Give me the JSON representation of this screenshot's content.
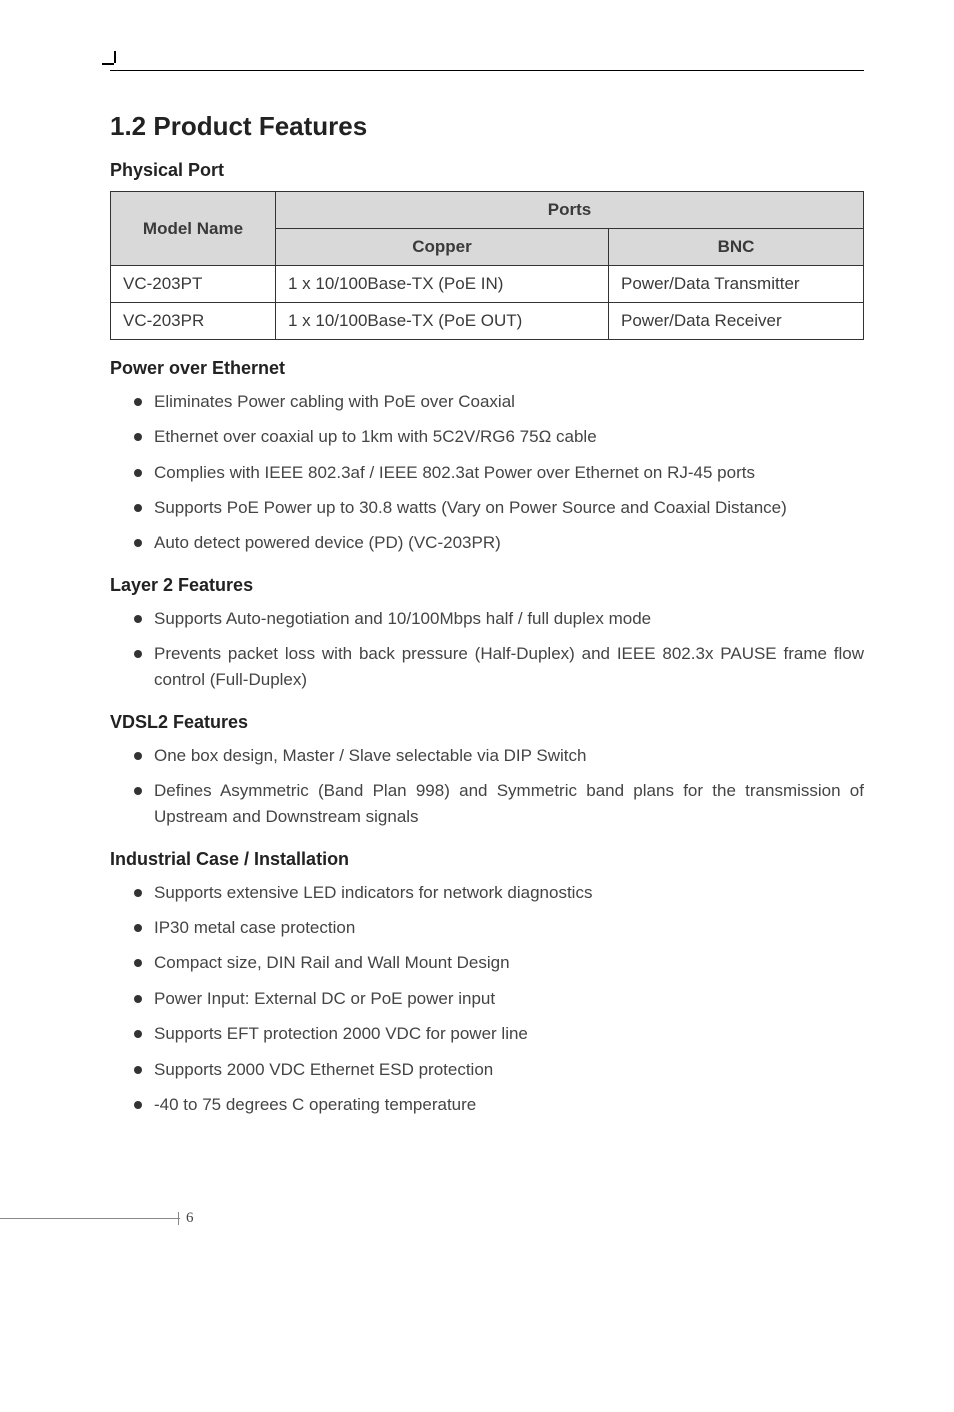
{
  "header": {
    "section_number_title": "1.2  Product Features"
  },
  "physical_port": {
    "heading": "Physical Port",
    "table": {
      "header_model": "Model Name",
      "header_ports": "Ports",
      "header_copper": "Copper",
      "header_bnc": "BNC",
      "rows": [
        {
          "model": "VC-203PT",
          "copper": "1 x 10/100Base-TX (PoE IN)",
          "bnc": "Power/Data Transmitter"
        },
        {
          "model": "VC-203PR",
          "copper": "1 x 10/100Base-TX (PoE OUT)",
          "bnc": "Power/Data Receiver"
        }
      ]
    }
  },
  "power_over_ethernet": {
    "heading": "Power over Ethernet",
    "items": [
      "Eliminates Power cabling with PoE over Coaxial",
      "Ethernet over coaxial up to 1km with 5C2V/RG6 75Ω cable",
      "Complies with IEEE 802.3af / IEEE 802.3at Power over Ethernet on RJ-45 ports",
      "Supports PoE Power up to 30.8 watts (Vary on Power Source and Coaxial Distance)",
      "Auto detect powered device (PD) (VC-203PR)"
    ]
  },
  "layer2": {
    "heading": "Layer 2 Features",
    "items": [
      "Supports Auto-negotiation and 10/100Mbps half / full duplex mode",
      "Prevents packet loss with back pressure (Half-Duplex) and IEEE 802.3x PAUSE frame flow control (Full-Duplex)"
    ]
  },
  "vdsl2": {
    "heading": "VDSL2 Features",
    "items": [
      "One box design, Master / Slave selectable via DIP Switch",
      "Defines Asymmetric (Band Plan 998) and Symmetric band plans for the transmission of Upstream and Downstream signals"
    ]
  },
  "industrial": {
    "heading": "Industrial Case / Installation",
    "items": [
      "Supports extensive LED indicators for network diagnostics",
      "IP30 metal case protection",
      "Compact size, DIN Rail and Wall Mount Design",
      "Power Input: External DC or PoE power input",
      "Supports EFT protection 2000 VDC for power line",
      "Supports 2000 VDC Ethernet ESD protection",
      "-40 to 75 degrees C operating temperature"
    ]
  },
  "footer": {
    "page_number": "6"
  }
}
